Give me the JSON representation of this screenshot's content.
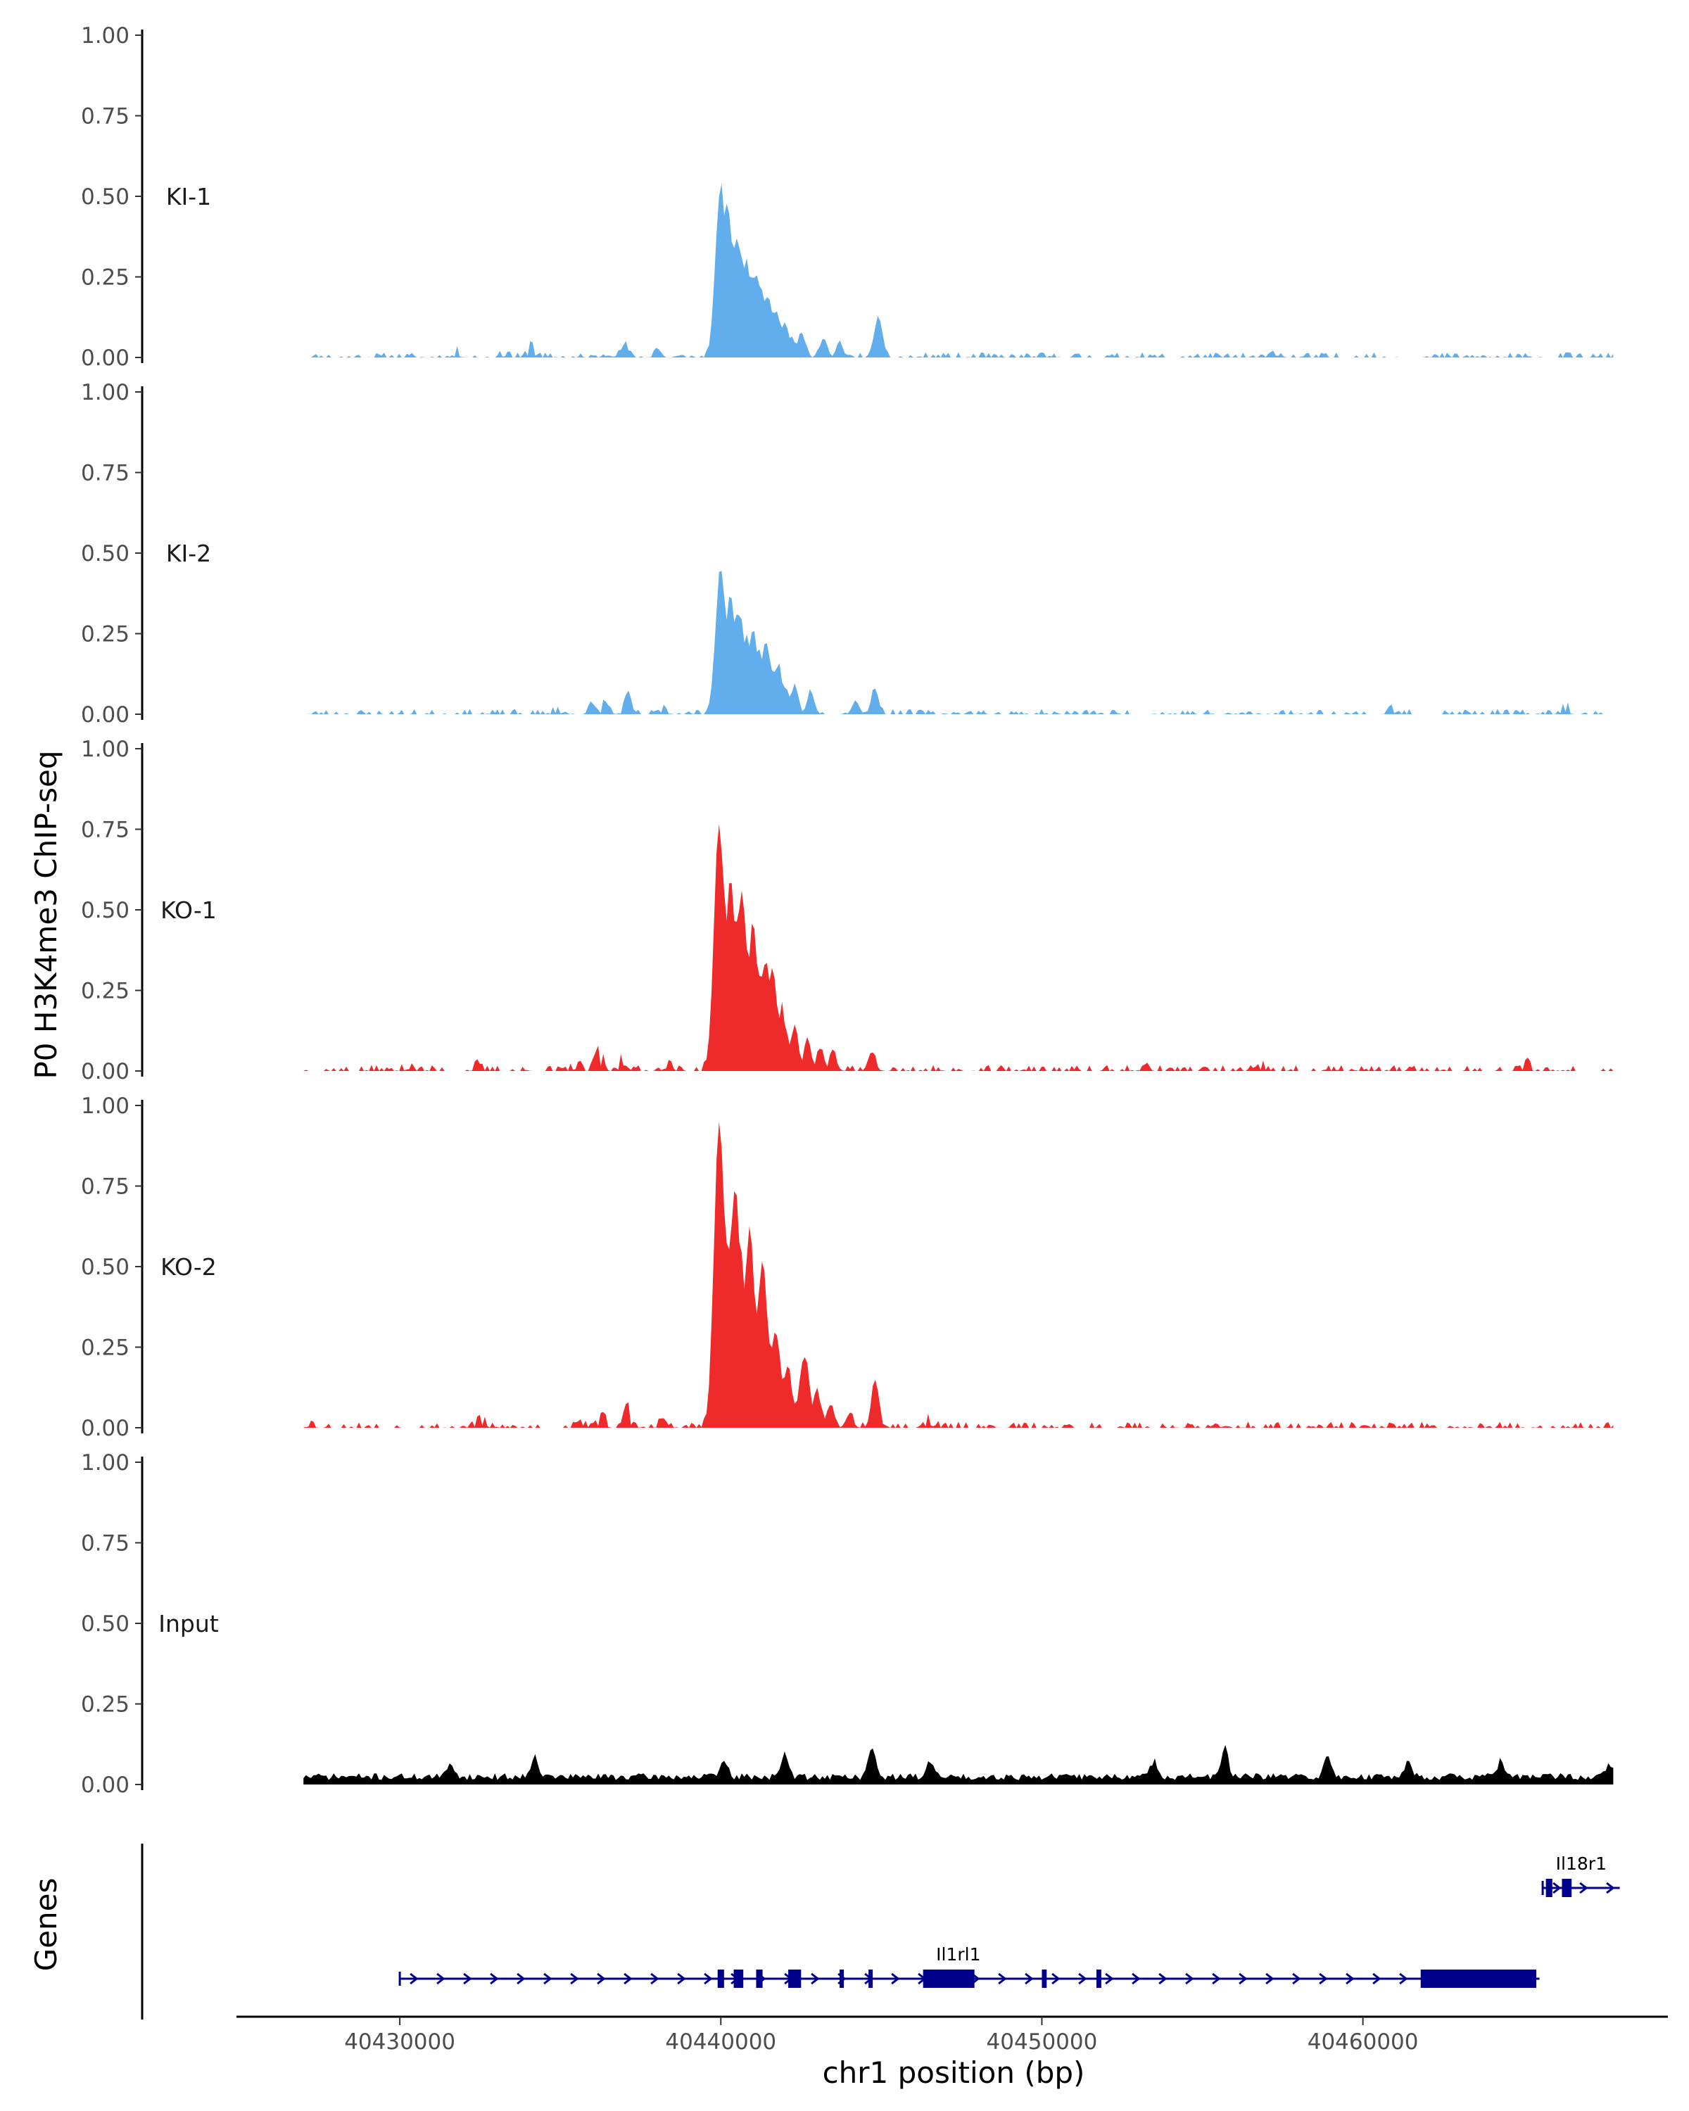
{
  "chart_data": {
    "type": "area",
    "ylabel": "P0 H3K4me3 ChIP-seq",
    "xlabel": "chr1 position (bp)",
    "gene_panel_label": "Genes",
    "ylim": [
      0,
      1
    ],
    "xlim": [
      40425000,
      40469500
    ],
    "data_range": [
      40427000,
      40467800
    ],
    "y_ticks": [
      "0.00",
      "0.25",
      "0.50",
      "0.75",
      "1.00"
    ],
    "x_ticks": [
      {
        "value": 40430000,
        "label": "40430000"
      },
      {
        "value": 40440000,
        "label": "40440000"
      },
      {
        "value": 40450000,
        "label": "40450000"
      },
      {
        "value": 40460000,
        "label": "40460000"
      }
    ],
    "colors": {
      "KI": "#62aeec",
      "KO": "#ee2a2a",
      "Input": "#000000",
      "gene": "#00008b",
      "axis": "#000000"
    },
    "series": [
      {
        "name": "KI-1",
        "color": "#62aeec",
        "peaks": [
          [
            40440000,
            0.53
          ],
          [
            40440200,
            0.48
          ],
          [
            40440500,
            0.37
          ],
          [
            40440800,
            0.29
          ],
          [
            40441200,
            0.22
          ],
          [
            40441600,
            0.14
          ],
          [
            40442000,
            0.11
          ],
          [
            40442500,
            0.08
          ],
          [
            40443200,
            0.06
          ],
          [
            40444900,
            0.13
          ],
          [
            40443700,
            0.04
          ],
          [
            40438000,
            0.03
          ],
          [
            40437000,
            0.04
          ],
          [
            40436500,
            0.03
          ],
          [
            40431800,
            0.02
          ],
          [
            40433300,
            0.02
          ],
          [
            40434100,
            0.05
          ],
          [
            40457300,
            0.03
          ]
        ],
        "peak_zone": [
          40439500,
          40446000
        ],
        "noise": 0.012,
        "seed": 11
      },
      {
        "name": "KI-2",
        "color": "#62aeec",
        "peaks": [
          [
            40440000,
            0.45
          ],
          [
            40440300,
            0.37
          ],
          [
            40440600,
            0.31
          ],
          [
            40441000,
            0.26
          ],
          [
            40441400,
            0.21
          ],
          [
            40441800,
            0.16
          ],
          [
            40442300,
            0.09
          ],
          [
            40442800,
            0.07
          ],
          [
            40444800,
            0.08
          ],
          [
            40444200,
            0.04
          ],
          [
            40437100,
            0.06
          ],
          [
            40436400,
            0.04
          ],
          [
            40438200,
            0.03
          ],
          [
            40436000,
            0.03
          ],
          [
            40434900,
            0.02
          ],
          [
            40466300,
            0.04
          ],
          [
            40460900,
            0.02
          ]
        ],
        "peak_zone": [
          40439500,
          40446000
        ],
        "noise": 0.012,
        "seed": 23
      },
      {
        "name": "KO-1",
        "color": "#ee2a2a",
        "peaks": [
          [
            40439950,
            0.76
          ],
          [
            40440300,
            0.6
          ],
          [
            40440650,
            0.56
          ],
          [
            40441000,
            0.45
          ],
          [
            40441400,
            0.34
          ],
          [
            40441600,
            0.32
          ],
          [
            40441900,
            0.2
          ],
          [
            40442300,
            0.14
          ],
          [
            40442700,
            0.1
          ],
          [
            40443100,
            0.07
          ],
          [
            40443500,
            0.05
          ],
          [
            40444700,
            0.06
          ],
          [
            40437000,
            0.09
          ],
          [
            40436200,
            0.08
          ],
          [
            40435500,
            0.03
          ],
          [
            40438300,
            0.04
          ],
          [
            40432400,
            0.02
          ],
          [
            40430300,
            0.03
          ],
          [
            40453200,
            0.02
          ],
          [
            40456900,
            0.02
          ],
          [
            40465100,
            0.03
          ]
        ],
        "peak_zone": [
          40439500,
          40446000
        ],
        "noise": 0.014,
        "seed": 37
      },
      {
        "name": "KO-2",
        "color": "#ee2a2a",
        "peaks": [
          [
            40439950,
            0.95
          ],
          [
            40440450,
            0.75
          ],
          [
            40440900,
            0.62
          ],
          [
            40441300,
            0.52
          ],
          [
            40441700,
            0.3
          ],
          [
            40442100,
            0.18
          ],
          [
            40442600,
            0.22
          ],
          [
            40443000,
            0.11
          ],
          [
            40443400,
            0.07
          ],
          [
            40444800,
            0.15
          ],
          [
            40444000,
            0.04
          ],
          [
            40437100,
            0.07
          ],
          [
            40436300,
            0.05
          ],
          [
            40435700,
            0.03
          ],
          [
            40438200,
            0.03
          ],
          [
            40432500,
            0.04
          ],
          [
            40427200,
            0.02
          ],
          [
            40446500,
            0.04
          ]
        ],
        "peak_zone": [
          40439500,
          40446000
        ],
        "noise": 0.014,
        "seed": 53
      },
      {
        "name": "Input",
        "color": "#000000",
        "peaks": [
          [
            40444700,
            0.09
          ],
          [
            40434200,
            0.07
          ],
          [
            40455700,
            0.09
          ],
          [
            40453500,
            0.05
          ],
          [
            40442000,
            0.07
          ],
          [
            40440100,
            0.05
          ],
          [
            40431600,
            0.04
          ],
          [
            40446500,
            0.05
          ],
          [
            40458900,
            0.06
          ],
          [
            40461400,
            0.05
          ],
          [
            40464300,
            0.05
          ],
          [
            40467700,
            0.04
          ]
        ],
        "peak_zone": [
          40427000,
          40467800
        ],
        "noise": 0.035,
        "seed": 71
      }
    ],
    "genes": [
      {
        "name": "Il1rl1",
        "start": 40430000,
        "end": 40465500,
        "strand": "+",
        "row": 2,
        "exons": [
          [
            40439900,
            40440100
          ],
          [
            40440400,
            40440700
          ],
          [
            40441100,
            40441300
          ],
          [
            40442100,
            40442500
          ],
          [
            40443700,
            40443800
          ],
          [
            40444600,
            40444700
          ],
          [
            40446300,
            40447900
          ],
          [
            40450000,
            40450150
          ],
          [
            40451700,
            40451850
          ],
          [
            40461800,
            40465400
          ]
        ]
      },
      {
        "name": "Il18r1",
        "start": 40465600,
        "end": 40468000,
        "strand": "+",
        "row": 1,
        "exons": [
          [
            40465700,
            40465900
          ],
          [
            40466200,
            40466500
          ]
        ]
      }
    ]
  }
}
